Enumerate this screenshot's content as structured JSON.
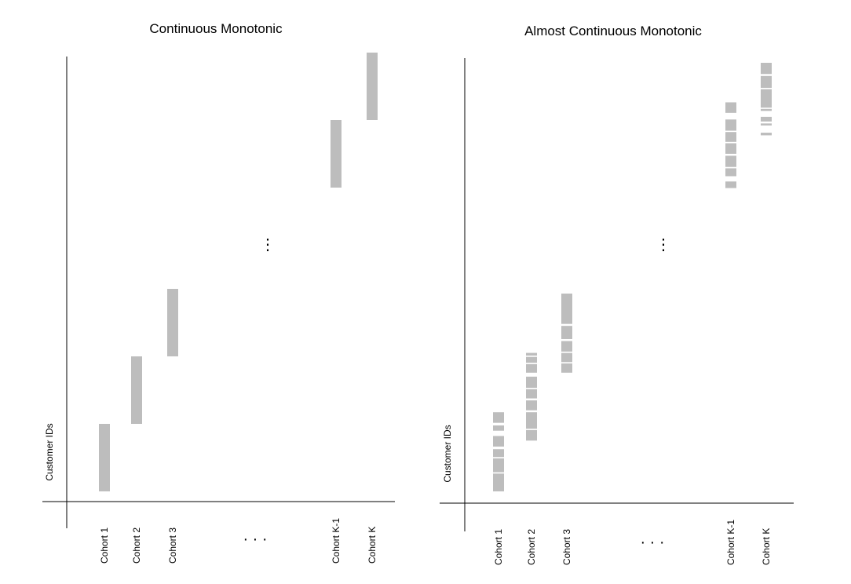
{
  "colors": {
    "bar": "#bdbdbd",
    "axis": "#000000",
    "gap": "#ffffff"
  },
  "panels": [
    {
      "id": "continuous",
      "title": "Continuous Monotonic",
      "ylabel": "Customer IDs",
      "ellipsis_x": "· · ·",
      "ellipsis_y": "⋮",
      "cohorts": [
        {
          "label": "Cohort 1",
          "range": [
            0.0,
            1.0
          ],
          "gaps": []
        },
        {
          "label": "Cohort 2",
          "range": [
            1.0,
            2.0
          ],
          "gaps": []
        },
        {
          "label": "Cohort 3",
          "range": [
            2.0,
            3.0
          ],
          "gaps": []
        },
        {
          "label": "Cohort K-1",
          "range": [
            4.5,
            5.5
          ],
          "gaps": []
        },
        {
          "label": "Cohort K",
          "range": [
            5.5,
            6.5
          ],
          "gaps": []
        }
      ]
    },
    {
      "id": "almost-continuous",
      "title": "Almost Continuous Monotonic",
      "ylabel": "Customer IDs",
      "ellipsis_x": "· · ·",
      "ellipsis_y": "⋮",
      "cohorts": [
        {
          "label": "Cohort 1",
          "range": [
            0.0,
            1.35
          ],
          "gaps": [
            [
              0.27,
              0.29
            ],
            [
              0.5,
              0.52
            ],
            [
              0.64,
              0.68
            ],
            [
              0.84,
              0.92
            ],
            [
              1.0,
              1.04
            ],
            [
              1.2,
              1.35
            ]
          ]
        },
        {
          "label": "Cohort 2",
          "range": [
            0.77,
            2.1
          ],
          "gaps": [
            [
              0.93,
              0.95
            ],
            [
              1.2,
              1.23
            ],
            [
              1.38,
              1.41
            ],
            [
              1.55,
              1.57
            ],
            [
              1.74,
              1.8
            ],
            [
              1.93,
              1.95
            ],
            [
              2.04,
              2.06
            ]
          ]
        },
        {
          "label": "Cohort 3",
          "range": [
            1.8,
            3.0
          ],
          "gaps": [
            [
              1.94,
              1.96
            ],
            [
              2.1,
              2.12
            ],
            [
              2.28,
              2.31
            ],
            [
              2.51,
              2.54
            ]
          ]
        },
        {
          "label": "Cohort K-1",
          "range": [
            4.6,
            5.9
          ],
          "gaps": [
            [
              4.7,
              4.78
            ],
            [
              4.9,
              4.92
            ],
            [
              5.09,
              5.12
            ],
            [
              5.28,
              5.3
            ],
            [
              5.45,
              5.47
            ],
            [
              5.64,
              5.74
            ]
          ]
        },
        {
          "label": "Cohort K",
          "range": [
            5.4,
            6.5
          ],
          "gaps": [
            [
              5.44,
              5.55
            ],
            [
              5.58,
              5.61
            ],
            [
              5.68,
              5.77
            ],
            [
              5.8,
              5.82
            ],
            [
              6.1,
              6.12
            ],
            [
              6.3,
              6.33
            ]
          ]
        }
      ]
    }
  ]
}
